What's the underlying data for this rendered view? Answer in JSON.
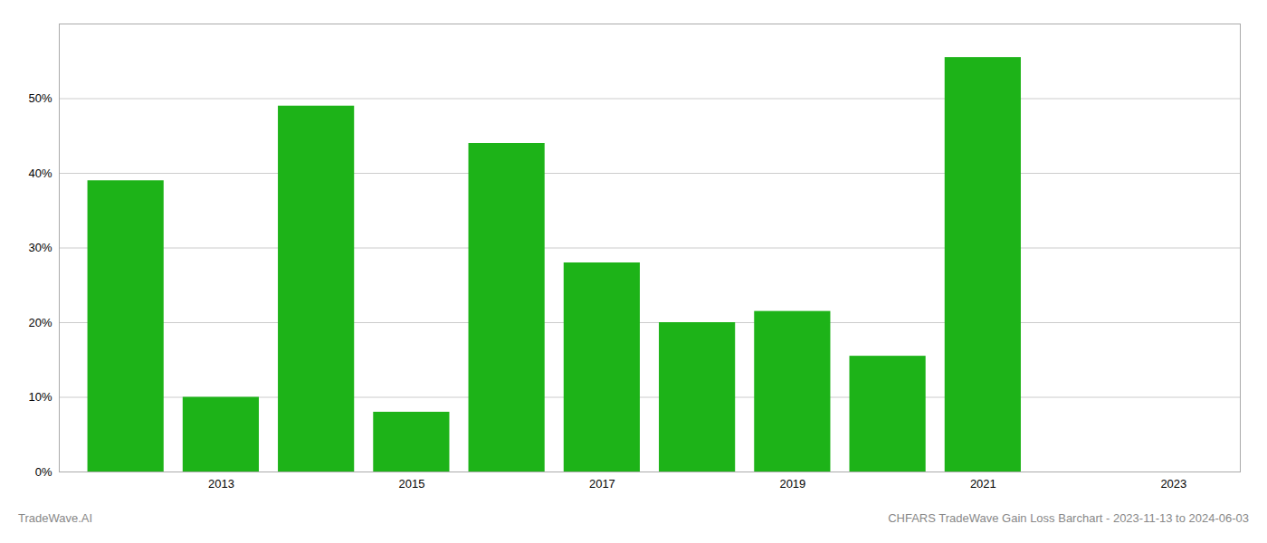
{
  "chart_data": {
    "type": "bar",
    "x": [
      2012,
      2013,
      2014,
      2015,
      2016,
      2017,
      2018,
      2019,
      2020,
      2021,
      2022
    ],
    "values": [
      0.39,
      0.1,
      0.49,
      0.08,
      0.44,
      0.28,
      0.2,
      0.215,
      0.155,
      0.555,
      0.0
    ],
    "color": "#1db318",
    "xlim": [
      2011.3,
      2023.7
    ],
    "xticks": [
      2013,
      2015,
      2017,
      2019,
      2021,
      2023
    ],
    "ylim": [
      0,
      0.6
    ],
    "yticks": [
      {
        "value": 0.0,
        "label": "0%"
      },
      {
        "value": 0.1,
        "label": "10%"
      },
      {
        "value": 0.2,
        "label": "20%"
      },
      {
        "value": 0.3,
        "label": "30%"
      },
      {
        "value": 0.4,
        "label": "40%"
      },
      {
        "value": 0.5,
        "label": "50%"
      }
    ],
    "grid": true,
    "annotations": [
      "TradeWave.AI",
      "CHFARS TradeWave Gain Loss Barchart - 2023-11-13 to 2024-06-03"
    ]
  }
}
